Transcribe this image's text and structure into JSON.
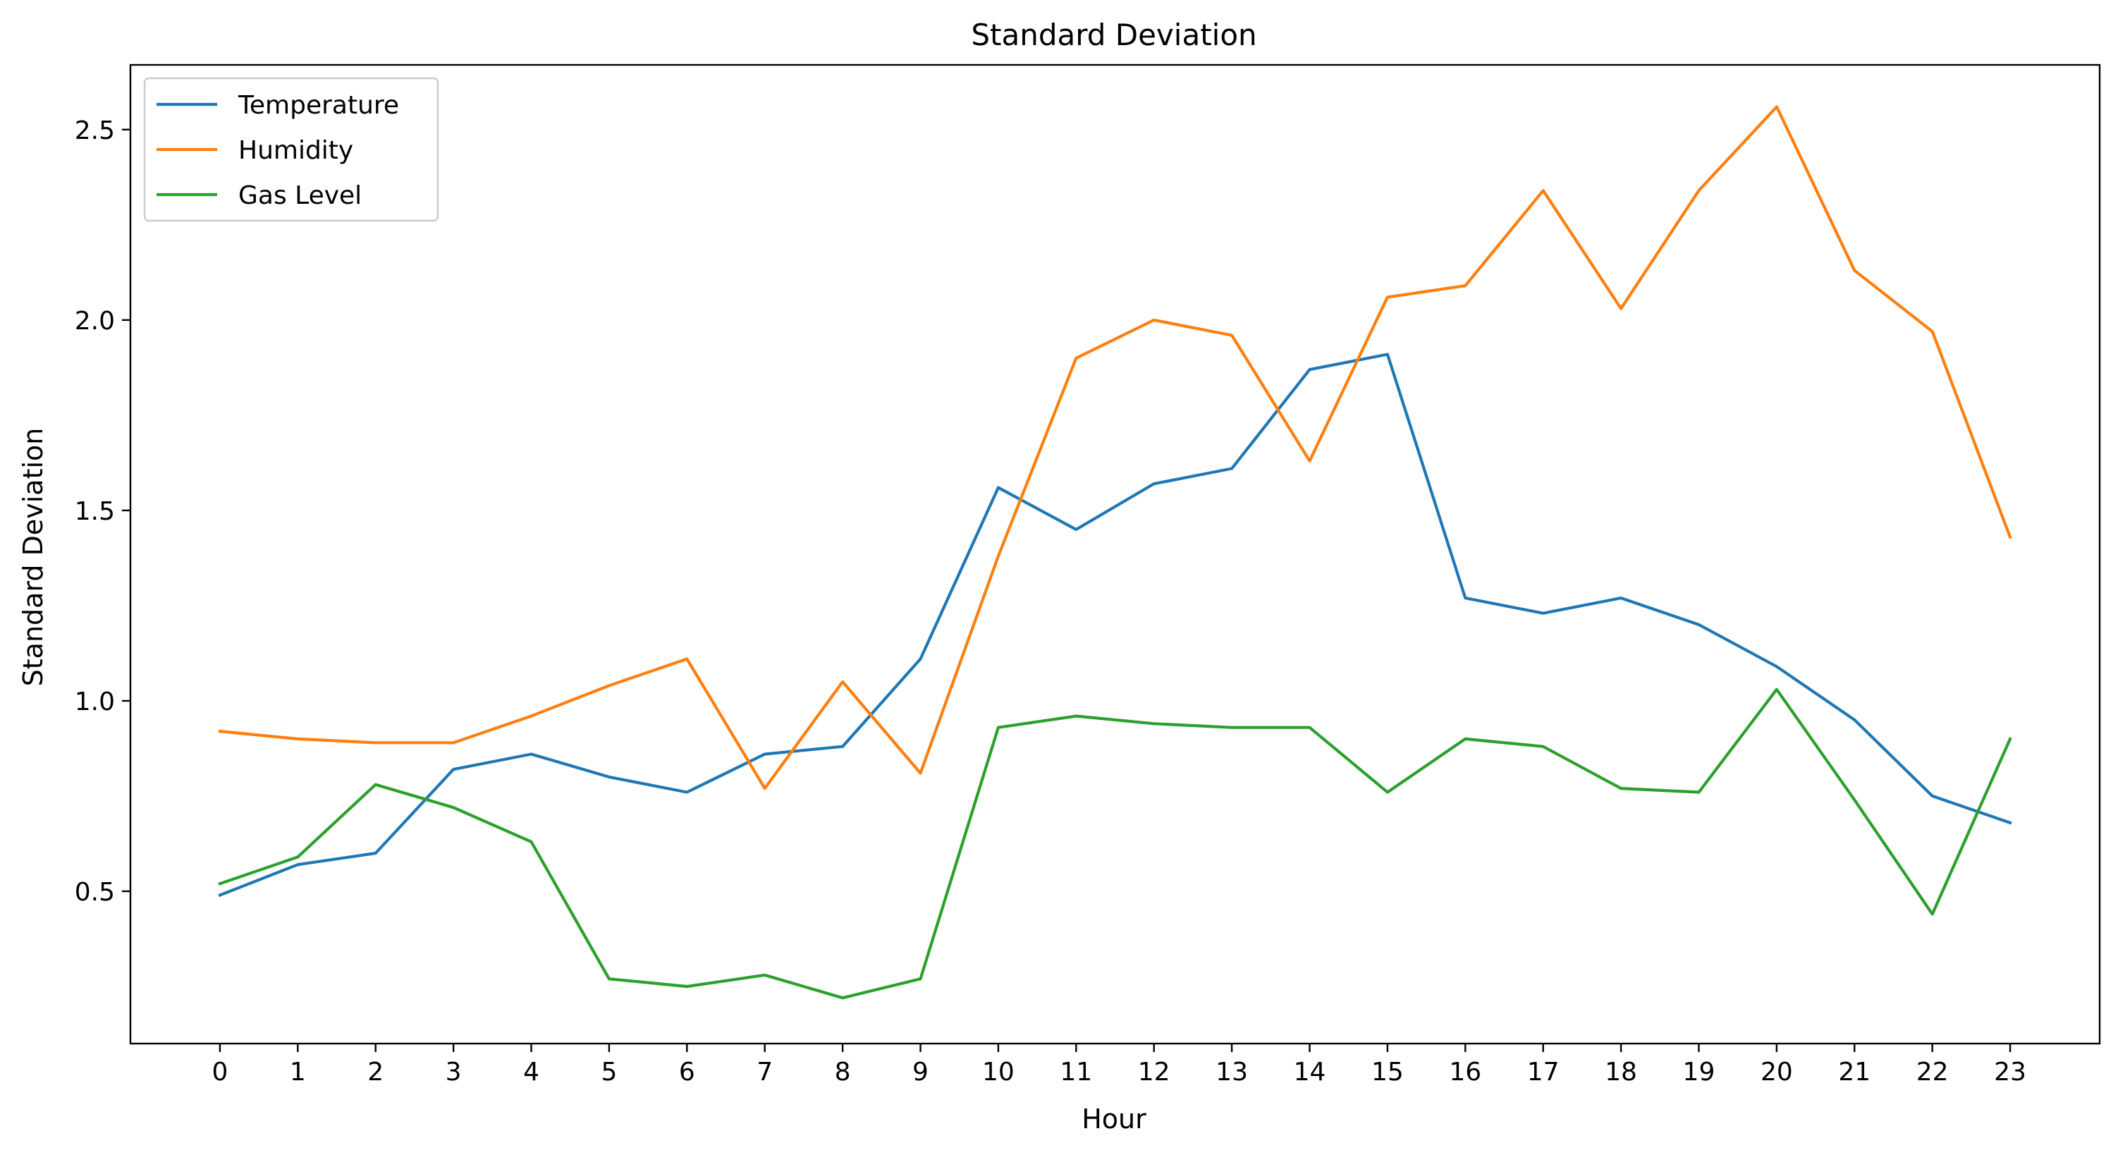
{
  "chart_data": {
    "type": "line",
    "title": "Standard Deviation",
    "xlabel": "Hour",
    "ylabel": "Standard Deviation",
    "x": [
      0,
      1,
      2,
      3,
      4,
      5,
      6,
      7,
      8,
      9,
      10,
      11,
      12,
      13,
      14,
      15,
      16,
      17,
      18,
      19,
      20,
      21,
      22,
      23
    ],
    "x_ticks": [
      "0",
      "1",
      "2",
      "3",
      "4",
      "5",
      "6",
      "7",
      "8",
      "9",
      "10",
      "11",
      "12",
      "13",
      "14",
      "15",
      "16",
      "17",
      "18",
      "19",
      "20",
      "21",
      "22",
      "23"
    ],
    "xlim": [
      -1.15,
      24.15
    ],
    "ylim": [
      0.1,
      2.67
    ],
    "y_ticks": [
      0.5,
      1.0,
      1.5,
      2.0,
      2.5
    ],
    "y_tick_labels": [
      "0.5",
      "1.0",
      "1.5",
      "2.0",
      "2.5"
    ],
    "grid": false,
    "legend_position": "top-left",
    "series": [
      {
        "name": "Temperature",
        "color": "#1f77b4",
        "values": [
          0.49,
          0.57,
          0.6,
          0.82,
          0.86,
          0.8,
          0.76,
          0.86,
          0.88,
          1.11,
          1.56,
          1.45,
          1.57,
          1.61,
          1.87,
          1.91,
          1.27,
          1.23,
          1.27,
          1.2,
          1.09,
          0.95,
          0.75,
          0.68
        ]
      },
      {
        "name": "Humidity",
        "color": "#ff7f0e",
        "values": [
          0.92,
          0.9,
          0.89,
          0.89,
          0.96,
          1.04,
          1.11,
          0.77,
          1.05,
          0.81,
          1.38,
          1.9,
          2.0,
          1.96,
          1.63,
          2.06,
          2.09,
          2.34,
          2.03,
          2.34,
          2.56,
          2.13,
          1.97,
          1.43
        ]
      },
      {
        "name": "Gas Level",
        "color": "#2ca02c",
        "values": [
          0.52,
          0.59,
          0.78,
          0.72,
          0.63,
          0.27,
          0.25,
          0.28,
          0.22,
          0.27,
          0.93,
          0.96,
          0.94,
          0.93,
          0.93,
          0.76,
          0.9,
          0.88,
          0.77,
          0.76,
          1.03,
          0.74,
          0.44,
          0.9
        ]
      }
    ]
  }
}
